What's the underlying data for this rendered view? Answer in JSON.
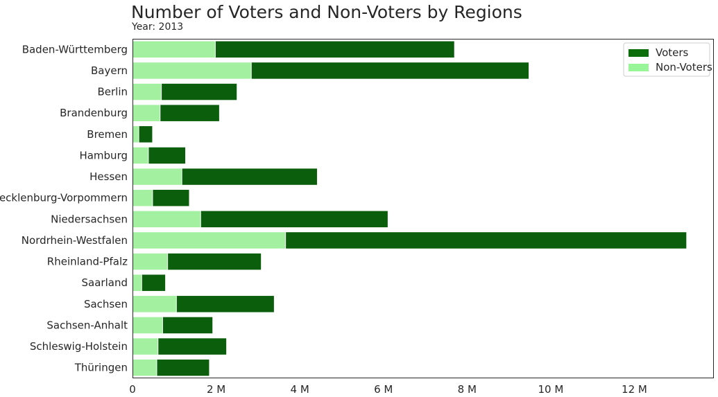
{
  "chart_data": {
    "type": "bar",
    "orientation": "horizontal",
    "stacked": "overlay",
    "title": "Number of Voters and Non-Voters by Regions",
    "subtitle": "Year: 2013",
    "categories": [
      "Baden-Württemberg",
      "Bayern",
      "Berlin",
      "Brandenburg",
      "Bremen",
      "Hamburg",
      "Hessen",
      "Mecklenburg-Vorpommern",
      "Niedersachsen",
      "Nordrhein-Westfalen",
      "Rheinland-Pfalz",
      "Saarland",
      "Sachsen",
      "Sachsen-Anhalt",
      "Schleswig-Holstein",
      "Thüringen"
    ],
    "series": [
      {
        "name": "Voters",
        "color": "#0b5e0b",
        "values": [
          7.7,
          9.48,
          2.5,
          2.08,
          0.48,
          1.27,
          4.42,
          1.36,
          6.11,
          13.25,
          3.08,
          0.79,
          3.39,
          1.92,
          2.25,
          1.84
        ]
      },
      {
        "name": "Non-Voters",
        "color": "#a3f0a0",
        "values": [
          1.98,
          2.84,
          0.69,
          0.66,
          0.15,
          0.38,
          1.18,
          0.48,
          1.63,
          3.66,
          0.84,
          0.22,
          1.05,
          0.72,
          0.61,
          0.58
        ]
      }
    ],
    "xlim": [
      0,
      13.9
    ],
    "xticks": [
      0,
      2,
      4,
      6,
      8,
      10,
      12
    ],
    "xtick_labels": [
      "0",
      "2 M",
      "4 M",
      "6 M",
      "8 M",
      "10 M",
      "12 M"
    ],
    "legend": {
      "position": "top-right",
      "entries": [
        "Voters",
        "Non-Voters"
      ],
      "colors": [
        "#0b6e0b",
        "#98f598"
      ]
    },
    "grid": false
  }
}
